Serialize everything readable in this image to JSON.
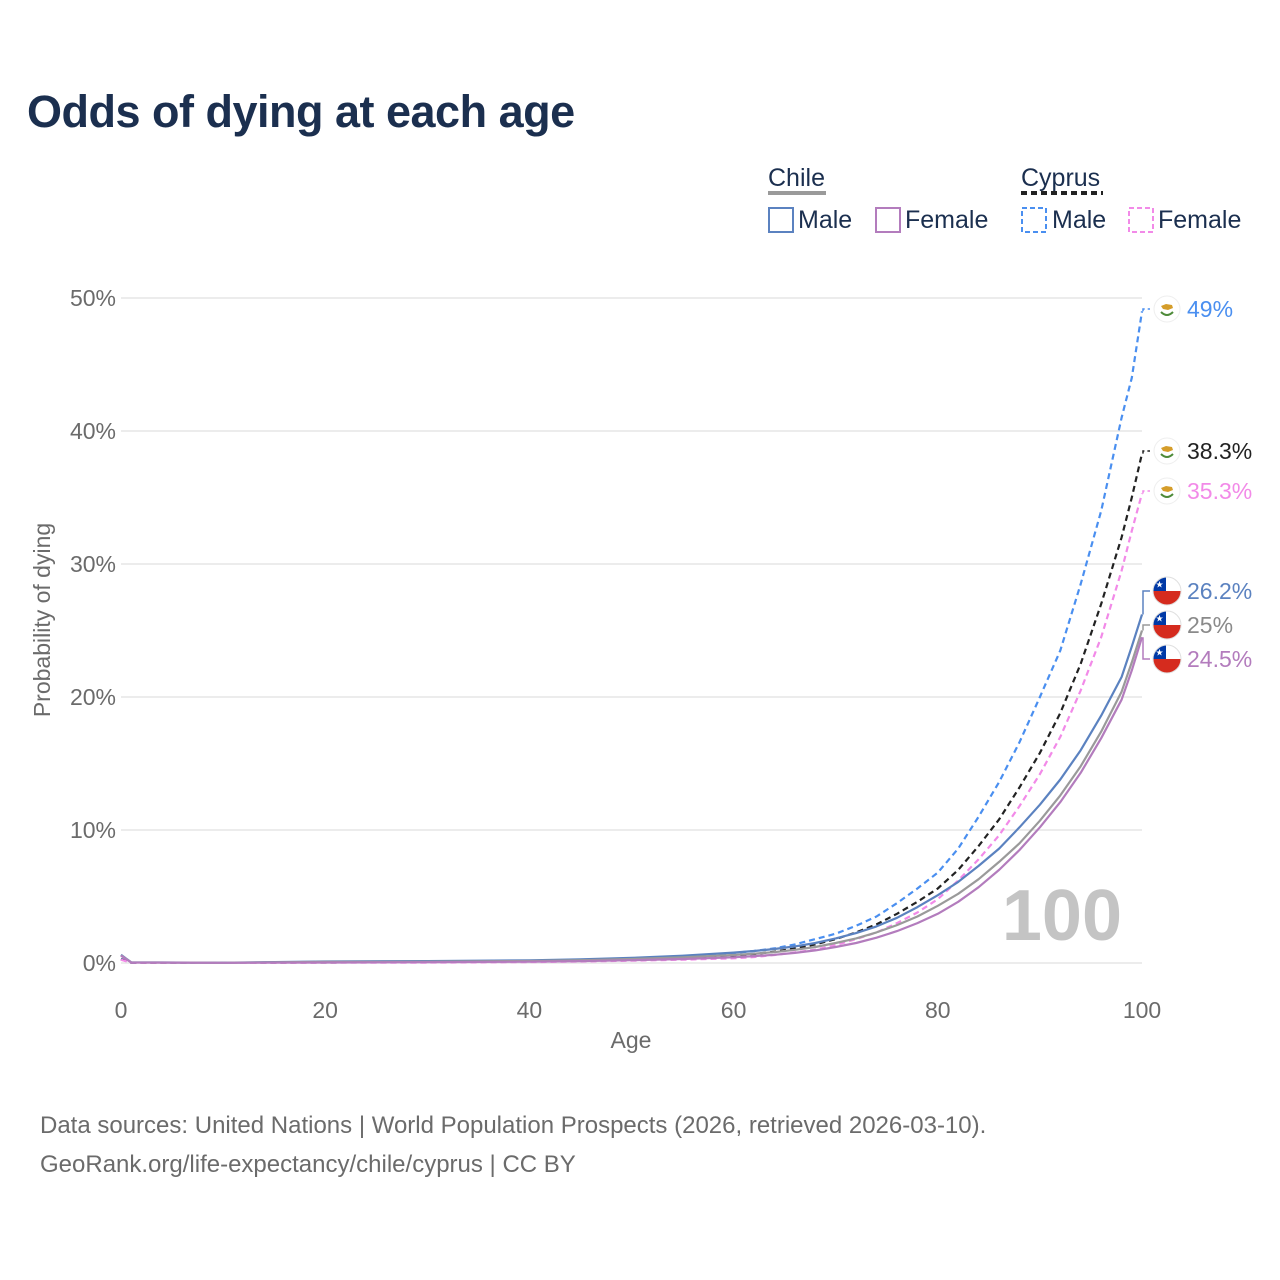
{
  "title": "Odds of dying at each age",
  "footer": {
    "line1": "Data sources: United Nations | World Population Prospects (2026, retrieved 2026-03-10).",
    "line2": "GeoRank.org/life-expectancy/chile/cyprus | CC BY"
  },
  "legend": {
    "chile": {
      "name": "Chile",
      "male": "Male",
      "female": "Female"
    },
    "cyprus": {
      "name": "Cyprus",
      "male": "Male",
      "female": "Female"
    }
  },
  "colors": {
    "chile_male": "#5b82c0",
    "chile_female": "#b37cbd",
    "chile_overall": "#9a9a9a",
    "cyprus_male": "#4a8ff0",
    "cyprus_female": "#f28ae8",
    "cyprus_overall": "#222222",
    "title": "#1b2f4f"
  },
  "chart_data": {
    "type": "line",
    "title": "Odds of dying at each age",
    "xlabel": "Age",
    "ylabel": "Probability of dying",
    "xlim": [
      0,
      100
    ],
    "ylim": [
      0,
      50
    ],
    "x_ticks": [
      0,
      20,
      40,
      60,
      80,
      100
    ],
    "y_ticks": [
      0,
      10,
      20,
      30,
      40,
      50
    ],
    "y_tick_labels": [
      "0%",
      "10%",
      "20%",
      "30%",
      "40%",
      "50%"
    ],
    "age_watermark": "100",
    "x": [
      0,
      1,
      10,
      20,
      30,
      40,
      45,
      50,
      55,
      60,
      62,
      64,
      66,
      68,
      70,
      72,
      74,
      76,
      78,
      80,
      82,
      84,
      86,
      88,
      90,
      92,
      94,
      96,
      98,
      99,
      100
    ],
    "series": [
      {
        "key": "cyprus_male",
        "country": "Cyprus",
        "name": "Male",
        "dashed": true,
        "end_label": "49%",
        "values": [
          0.3,
          0.03,
          0.02,
          0.05,
          0.08,
          0.15,
          0.22,
          0.35,
          0.52,
          0.75,
          0.9,
          1.1,
          1.4,
          1.8,
          2.2,
          2.8,
          3.5,
          4.5,
          5.6,
          6.8,
          8.6,
          11.0,
          13.6,
          16.6,
          20.0,
          23.5,
          28.5,
          34.0,
          41.0,
          44.0,
          49.0
        ]
      },
      {
        "key": "cyprus_overall",
        "country": "Cyprus",
        "name": "Overall",
        "dashed": true,
        "end_label": "38.3%",
        "values": [
          0.28,
          0.025,
          0.015,
          0.04,
          0.06,
          0.11,
          0.17,
          0.26,
          0.38,
          0.55,
          0.68,
          0.85,
          1.1,
          1.4,
          1.8,
          2.3,
          2.9,
          3.7,
          4.6,
          5.6,
          7.0,
          8.8,
          10.8,
          13.2,
          15.8,
          18.8,
          22.5,
          27.0,
          32.0,
          35.0,
          38.3
        ]
      },
      {
        "key": "cyprus_female",
        "country": "Cyprus",
        "name": "Female",
        "dashed": true,
        "end_label": "35.3%",
        "values": [
          0.25,
          0.02,
          0.01,
          0.02,
          0.03,
          0.07,
          0.11,
          0.17,
          0.25,
          0.35,
          0.45,
          0.6,
          0.8,
          1.0,
          1.35,
          1.8,
          2.3,
          3.0,
          3.8,
          4.8,
          6.2,
          7.8,
          9.6,
          11.8,
          14.2,
          17.0,
          20.5,
          24.5,
          29.5,
          32.5,
          35.3
        ]
      },
      {
        "key": "chile_male",
        "country": "Chile",
        "name": "Male",
        "dashed": false,
        "end_label": "26.2%",
        "values": [
          0.62,
          0.05,
          0.02,
          0.11,
          0.14,
          0.2,
          0.27,
          0.38,
          0.55,
          0.78,
          0.9,
          1.05,
          1.25,
          1.5,
          1.85,
          2.25,
          2.75,
          3.4,
          4.2,
          5.1,
          6.1,
          7.3,
          8.6,
          10.2,
          11.9,
          13.8,
          16.0,
          18.6,
          21.5,
          23.8,
          26.2
        ]
      },
      {
        "key": "chile_overall",
        "country": "Chile",
        "name": "Overall",
        "dashed": false,
        "end_label": "25%",
        "values": [
          0.58,
          0.045,
          0.018,
          0.08,
          0.1,
          0.15,
          0.21,
          0.3,
          0.43,
          0.6,
          0.7,
          0.82,
          0.99,
          1.2,
          1.5,
          1.85,
          2.3,
          2.85,
          3.5,
          4.3,
          5.2,
          6.3,
          7.6,
          9.0,
          10.7,
          12.6,
          14.8,
          17.4,
          20.4,
          22.6,
          25.0
        ]
      },
      {
        "key": "chile_female",
        "country": "Chile",
        "name": "Female",
        "dashed": false,
        "end_label": "24.5%",
        "values": [
          0.55,
          0.04,
          0.015,
          0.04,
          0.06,
          0.1,
          0.14,
          0.21,
          0.3,
          0.43,
          0.52,
          0.62,
          0.76,
          0.95,
          1.2,
          1.5,
          1.9,
          2.4,
          3.0,
          3.7,
          4.6,
          5.7,
          7.0,
          8.5,
          10.2,
          12.1,
          14.3,
          16.9,
          19.8,
          22.0,
          24.5
        ]
      }
    ]
  }
}
